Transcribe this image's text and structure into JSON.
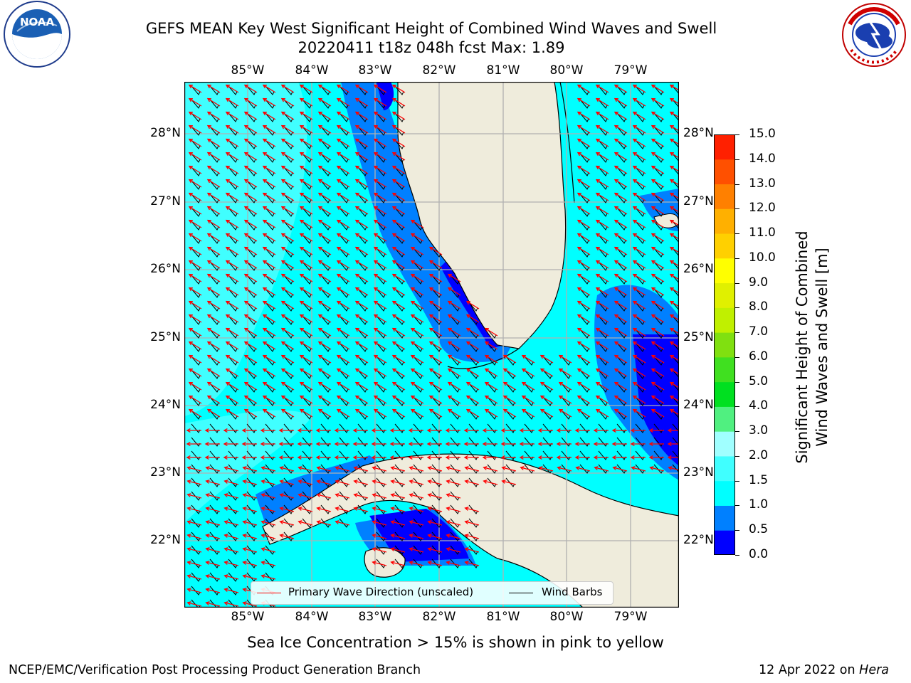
{
  "header": {
    "title_line1": "GEFS MEAN Key West Significant Height of Combined Wind Waves and Swell",
    "title_line2": "20220411 t18z 048h fcst   Max: 1.89"
  },
  "logos": {
    "left_text": "NOAA",
    "left_ring": "NATIONAL OCEANIC AND ATMOSPHERIC ADMINISTRATION · U.S. DEPARTMENT OF COMMERCE",
    "right_ring": "NATIONAL WEATHER SERVICE"
  },
  "map": {
    "lon_labels": [
      "85°W",
      "84°W",
      "83°W",
      "82°W",
      "81°W",
      "80°W",
      "79°W"
    ],
    "lat_labels": [
      "28°N",
      "27°N",
      "26°N",
      "25°N",
      "24°N",
      "23°N",
      "22°N"
    ],
    "colors": {
      "land": "#efecdc",
      "ocean_light": "#00ffff",
      "ocean_mid": "#0080ff",
      "ocean_deep": "#0000ff",
      "wave_arrow": "#ff0000",
      "barb": "#000000"
    },
    "legend": {
      "wave_label": "Primary Wave Direction (unscaled)",
      "barb_label": "Wind Barbs"
    }
  },
  "colorbar": {
    "label_line1": "Significant Height of Combined",
    "label_line2": "Wind Waves and Swell [m]",
    "ticks": [
      "15.0",
      "14.0",
      "13.0",
      "12.0",
      "11.0",
      "10.0",
      "9.0",
      "8.0",
      "7.0",
      "6.0",
      "5.0",
      "4.0",
      "3.0",
      "2.0",
      "1.5",
      "1.0",
      "0.5",
      "0.0"
    ],
    "colors": [
      "#0000ff",
      "#0080ff",
      "#00ffff",
      "#40ffff",
      "#a0ffff",
      "#50f080",
      "#00e020",
      "#40e020",
      "#80e010",
      "#c0f000",
      "#e0f000",
      "#ffff00",
      "#ffd000",
      "#ffb000",
      "#ff8000",
      "#ff5000",
      "#ff2000"
    ]
  },
  "note": "Sea Ice Concentration > 15% is shown in pink to yellow",
  "footer": {
    "left": "NCEP/EMC/Verification Post Processing Product Generation Branch",
    "date": "12 Apr 2022 on",
    "host": "Hera"
  }
}
